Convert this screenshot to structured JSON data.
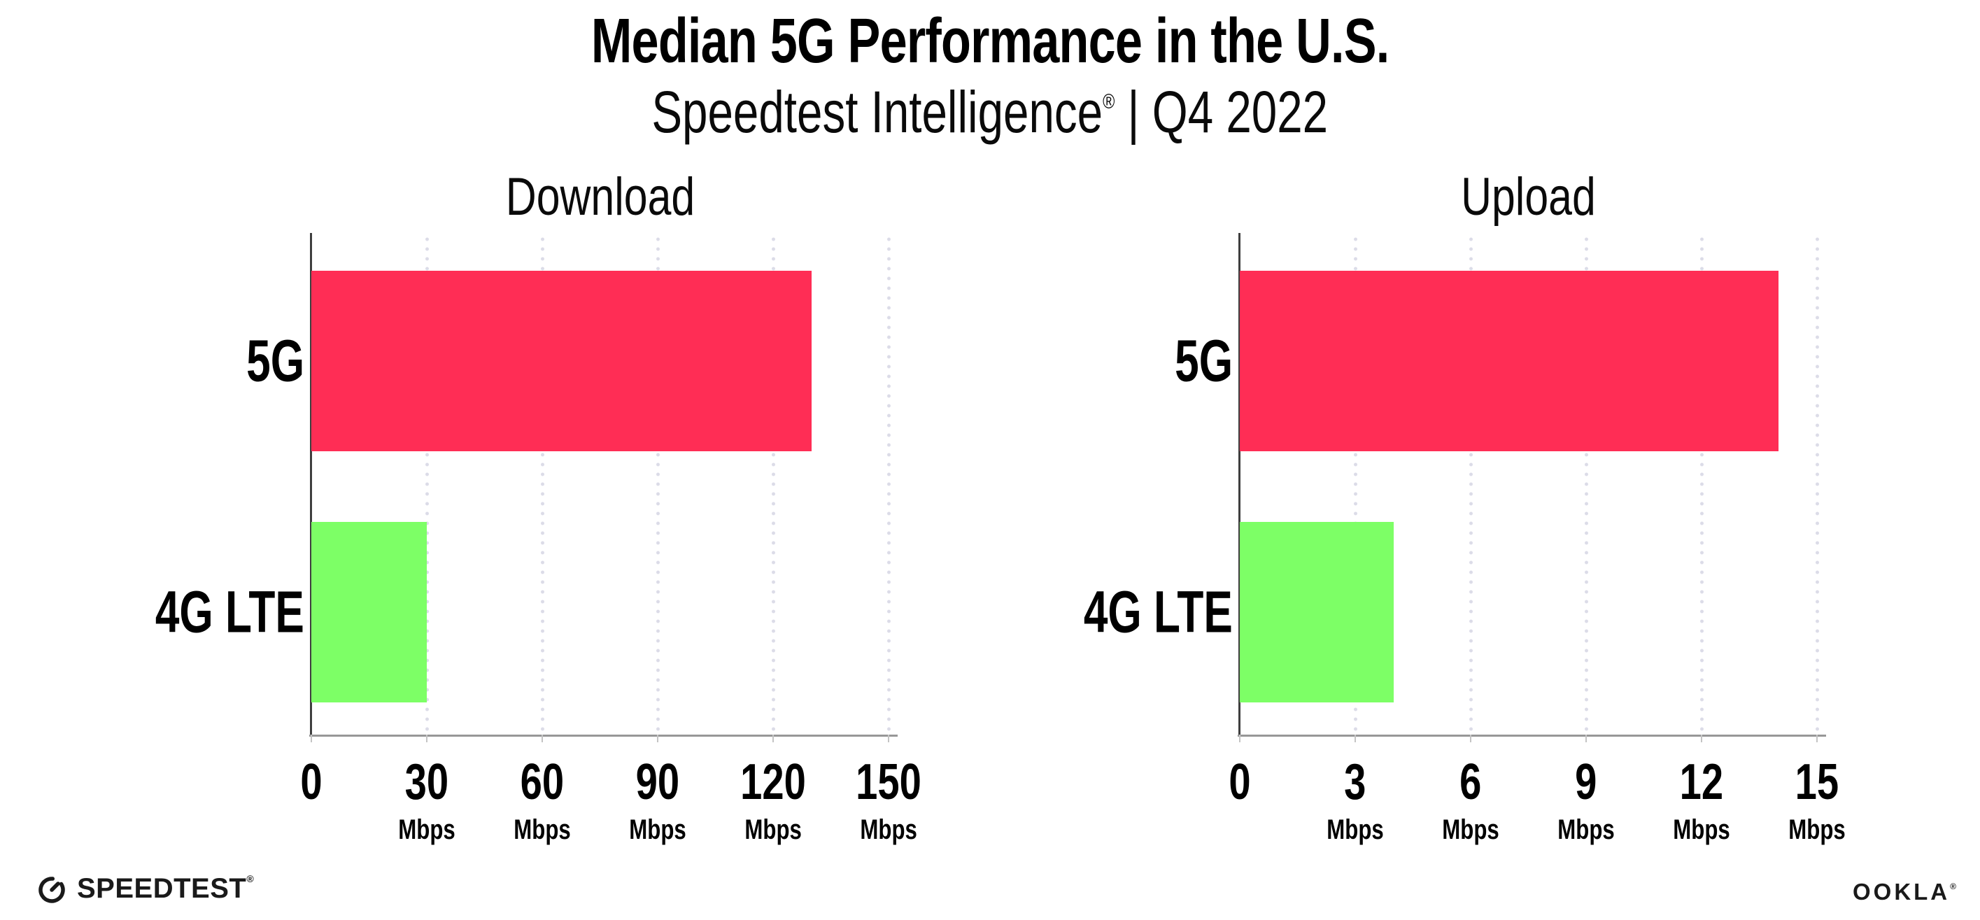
{
  "header": {
    "title": "Median 5G Performance in the U.S.",
    "subtitle_brand": "Speedtest Intelligence",
    "subtitle_reg": "®",
    "subtitle_rest": " | Q4 2022"
  },
  "colors": {
    "bar_5g": "#FF2D55",
    "bar_4g_lte": "#7DFF66",
    "gridline": "#DCDCE8",
    "y_axis": "#3F3F3F",
    "x_axis": "#979797",
    "text": "#000000"
  },
  "chart_data": [
    {
      "type": "bar",
      "orientation": "horizontal",
      "title": "Download",
      "categories": [
        "5G",
        "4G LTE"
      ],
      "values": [
        130,
        30
      ],
      "unit": "Mbps",
      "xlim": [
        0,
        150
      ],
      "xticks": [
        0,
        30,
        60,
        90,
        120,
        150
      ],
      "tick_unit_label": "Mbps",
      "bar_colors": [
        "#FF2D55",
        "#7DFF66"
      ],
      "grid": "dotted-vertical",
      "legend": "none"
    },
    {
      "type": "bar",
      "orientation": "horizontal",
      "title": "Upload",
      "categories": [
        "5G",
        "4G LTE"
      ],
      "values": [
        14,
        4
      ],
      "unit": "Mbps",
      "xlim": [
        0,
        15
      ],
      "xticks": [
        0,
        3,
        6,
        9,
        12,
        15
      ],
      "tick_unit_label": "Mbps",
      "bar_colors": [
        "#FF2D55",
        "#7DFF66"
      ],
      "grid": "dotted-vertical",
      "legend": "none"
    }
  ],
  "footer": {
    "speedtest_label": "SPEEDTEST",
    "speedtest_reg": "®",
    "ookla_label": "OOKLA",
    "ookla_reg": "®"
  }
}
